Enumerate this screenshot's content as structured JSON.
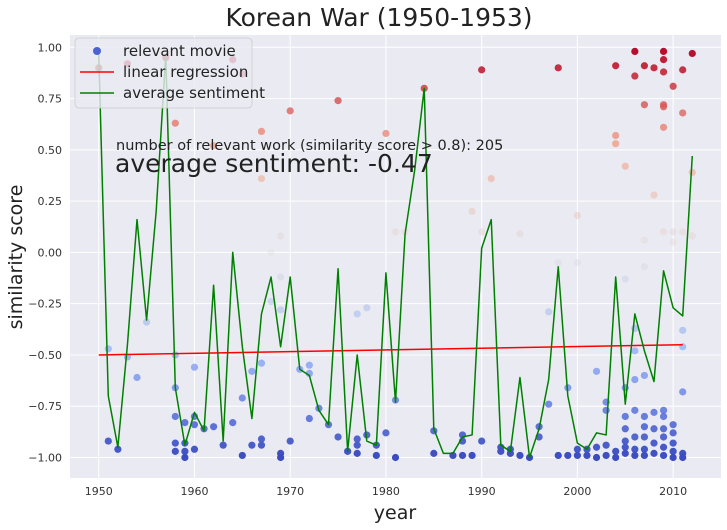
{
  "chart_data": {
    "type": "scatter",
    "title": "Korean War (1950-1953)",
    "xlabel": "year",
    "ylabel": "similarity score",
    "xlim": [
      1947,
      2015
    ],
    "ylim": [
      -1.1,
      1.06
    ],
    "xticks": [
      1950,
      1960,
      1970,
      1980,
      1990,
      2000,
      2010
    ],
    "yticks": [
      -1.0,
      -0.75,
      -0.5,
      -0.25,
      0.0,
      0.25,
      0.5,
      0.75,
      1.0
    ],
    "xtick_labels": [
      "1950",
      "1960",
      "1970",
      "1980",
      "1990",
      "2000",
      "2010"
    ],
    "ytick_labels": [
      "−1.00",
      "−0.75",
      "−0.50",
      "−0.25",
      "0.00",
      "0.25",
      "0.50",
      "0.75",
      "1.00"
    ],
    "grid": true,
    "background": "#eaeaf2",
    "legend": {
      "position": "top-left",
      "entries": [
        {
          "label": "relevant movie",
          "kind": "marker",
          "color": "#4a63d0"
        },
        {
          "label": "linear regression",
          "kind": "line",
          "color": "#ff0000"
        },
        {
          "label": "average sentiment",
          "kind": "line",
          "color": "#008000"
        }
      ]
    },
    "annotations": {
      "count_text": "number of relevant work (similarity score > 0.8): 205",
      "avg_text": "average sentiment: -0.47"
    },
    "colormap": "coolwarm",
    "points": [
      [
        1950,
        0.9
      ],
      [
        1951,
        -0.92
      ],
      [
        1951,
        -0.47
      ],
      [
        1952,
        -0.96
      ],
      [
        1953,
        -0.51
      ],
      [
        1953,
        0.92
      ],
      [
        1954,
        -0.61
      ],
      [
        1955,
        -0.34
      ],
      [
        1957,
        0.95
      ],
      [
        1958,
        0.63
      ],
      [
        1958,
        -0.5
      ],
      [
        1958,
        -0.66
      ],
      [
        1958,
        -0.8
      ],
      [
        1958,
        -0.93
      ],
      [
        1958,
        -0.97
      ],
      [
        1959,
        -0.83
      ],
      [
        1959,
        -0.93
      ],
      [
        1959,
        -0.97
      ],
      [
        1959,
        -1.0
      ],
      [
        1960,
        -0.56
      ],
      [
        1960,
        -0.8
      ],
      [
        1960,
        -0.84
      ],
      [
        1960,
        -0.96
      ],
      [
        1961,
        -0.86
      ],
      [
        1962,
        0.52
      ],
      [
        1962,
        -0.85
      ],
      [
        1963,
        -0.94
      ],
      [
        1964,
        0.94
      ],
      [
        1964,
        -0.83
      ],
      [
        1965,
        0.87
      ],
      [
        1965,
        -0.71
      ],
      [
        1965,
        -0.99
      ],
      [
        1966,
        -0.58
      ],
      [
        1966,
        -0.94
      ],
      [
        1967,
        0.59
      ],
      [
        1967,
        0.36
      ],
      [
        1967,
        -0.54
      ],
      [
        1967,
        -0.91
      ],
      [
        1967,
        -0.94
      ],
      [
        1968,
        0.0
      ],
      [
        1968,
        -0.24
      ],
      [
        1969,
        0.08
      ],
      [
        1969,
        -0.12
      ],
      [
        1969,
        -0.28
      ],
      [
        1969,
        -0.98
      ],
      [
        1969,
        -1.0
      ],
      [
        1970,
        0.69
      ],
      [
        1970,
        -0.92
      ],
      [
        1971,
        -0.57
      ],
      [
        1972,
        -0.55
      ],
      [
        1972,
        -0.59
      ],
      [
        1972,
        -0.81
      ],
      [
        1973,
        -0.76
      ],
      [
        1974,
        -0.84
      ],
      [
        1975,
        0.74
      ],
      [
        1975,
        -0.9
      ],
      [
        1976,
        -0.97
      ],
      [
        1977,
        -0.3
      ],
      [
        1977,
        -0.91
      ],
      [
        1977,
        -0.94
      ],
      [
        1977,
        -0.98
      ],
      [
        1978,
        -0.27
      ],
      [
        1978,
        -0.89
      ],
      [
        1979,
        -0.94
      ],
      [
        1979,
        -0.99
      ],
      [
        1980,
        0.58
      ],
      [
        1980,
        -0.88
      ],
      [
        1981,
        0.1
      ],
      [
        1981,
        -0.72
      ],
      [
        1981,
        -1.0
      ],
      [
        1982,
        0.1
      ],
      [
        1984,
        0.8
      ],
      [
        1985,
        -0.87
      ],
      [
        1985,
        -0.98
      ],
      [
        1987,
        -0.99
      ],
      [
        1988,
        -0.89
      ],
      [
        1988,
        -0.92
      ],
      [
        1988,
        -0.99
      ],
      [
        1989,
        0.2
      ],
      [
        1989,
        -0.99
      ],
      [
        1990,
        0.89
      ],
      [
        1990,
        0.1
      ],
      [
        1990,
        -0.92
      ],
      [
        1991,
        0.36
      ],
      [
        1992,
        -0.95
      ],
      [
        1992,
        -0.97
      ],
      [
        1993,
        -0.96
      ],
      [
        1993,
        -0.98
      ],
      [
        1994,
        0.09
      ],
      [
        1994,
        -0.99
      ],
      [
        1995,
        -1.0
      ],
      [
        1996,
        -0.85
      ],
      [
        1996,
        -0.9
      ],
      [
        1997,
        -0.29
      ],
      [
        1997,
        -0.74
      ],
      [
        1998,
        0.9
      ],
      [
        1998,
        -0.05
      ],
      [
        1998,
        -0.99
      ],
      [
        1999,
        -0.66
      ],
      [
        1999,
        -0.99
      ],
      [
        2000,
        0.18
      ],
      [
        2000,
        -0.05
      ],
      [
        2000,
        -0.96
      ],
      [
        2000,
        -0.99
      ],
      [
        2001,
        -0.96
      ],
      [
        2001,
        -0.99
      ],
      [
        2002,
        -0.58
      ],
      [
        2002,
        -0.95
      ],
      [
        2002,
        -1.0
      ],
      [
        2003,
        -0.73
      ],
      [
        2003,
        -0.77
      ],
      [
        2003,
        -0.94
      ],
      [
        2003,
        -0.99
      ],
      [
        2004,
        0.91
      ],
      [
        2004,
        0.57
      ],
      [
        2004,
        0.53
      ],
      [
        2004,
        -0.97
      ],
      [
        2004,
        -1.0
      ],
      [
        2005,
        0.42
      ],
      [
        2005,
        -0.13
      ],
      [
        2005,
        -0.66
      ],
      [
        2005,
        -0.8
      ],
      [
        2005,
        -0.86
      ],
      [
        2005,
        -0.92
      ],
      [
        2005,
        -0.95
      ],
      [
        2005,
        -0.98
      ],
      [
        2006,
        0.98
      ],
      [
        2006,
        0.86
      ],
      [
        2006,
        -0.37
      ],
      [
        2006,
        -0.48
      ],
      [
        2006,
        -0.62
      ],
      [
        2006,
        -0.77
      ],
      [
        2006,
        -0.9
      ],
      [
        2006,
        -0.96
      ],
      [
        2006,
        -0.99
      ],
      [
        2007,
        0.91
      ],
      [
        2007,
        0.72
      ],
      [
        2007,
        0.06
      ],
      [
        2007,
        -0.07
      ],
      [
        2007,
        -0.6
      ],
      [
        2007,
        -0.8
      ],
      [
        2007,
        -0.85
      ],
      [
        2007,
        -0.9
      ],
      [
        2007,
        -0.96
      ],
      [
        2007,
        -0.99
      ],
      [
        2008,
        0.9
      ],
      [
        2008,
        0.28
      ],
      [
        2008,
        -0.78
      ],
      [
        2008,
        -0.86
      ],
      [
        2008,
        -0.93
      ],
      [
        2008,
        -0.98
      ],
      [
        2009,
        0.98
      ],
      [
        2009,
        0.94
      ],
      [
        2009,
        0.88
      ],
      [
        2009,
        0.72
      ],
      [
        2009,
        0.71
      ],
      [
        2009,
        0.61
      ],
      [
        2009,
        0.1
      ],
      [
        2009,
        -0.77
      ],
      [
        2009,
        -0.8
      ],
      [
        2009,
        -0.86
      ],
      [
        2009,
        -0.9
      ],
      [
        2009,
        -0.95
      ],
      [
        2009,
        -0.99
      ],
      [
        2010,
        0.81
      ],
      [
        2010,
        0.1
      ],
      [
        2010,
        0.05
      ],
      [
        2010,
        -0.84
      ],
      [
        2010,
        -0.88
      ],
      [
        2010,
        -0.93
      ],
      [
        2010,
        -0.97
      ],
      [
        2010,
        -1.0
      ],
      [
        2011,
        0.89
      ],
      [
        2011,
        0.68
      ],
      [
        2011,
        0.1
      ],
      [
        2011,
        -0.38
      ],
      [
        2011,
        -0.46
      ],
      [
        2011,
        -0.68
      ],
      [
        2011,
        -0.98
      ],
      [
        2011,
        -1.0
      ],
      [
        2012,
        0.97
      ],
      [
        2012,
        0.39
      ],
      [
        2012,
        0.08
      ]
    ],
    "regression": {
      "x": [
        1950,
        2011
      ],
      "y": [
        -0.5,
        -0.45
      ]
    },
    "average_sentiment": {
      "x": [
        1950,
        1951,
        1952,
        1953,
        1954,
        1955,
        1956,
        1957,
        1958,
        1959,
        1960,
        1961,
        1962,
        1963,
        1964,
        1965,
        1966,
        1967,
        1968,
        1969,
        1970,
        1971,
        1972,
        1973,
        1974,
        1975,
        1976,
        1977,
        1978,
        1979,
        1980,
        1981,
        1982,
        1983,
        1984,
        1985,
        1986,
        1987,
        1988,
        1989,
        1990,
        1991,
        1992,
        1993,
        1994,
        1995,
        1996,
        1997,
        1998,
        1999,
        2000,
        2001,
        2002,
        2003,
        2004,
        2005,
        2006,
        2007,
        2008,
        2009,
        2010,
        2011,
        2012
      ],
      "y": [
        0.97,
        -0.7,
        -0.95,
        -0.45,
        0.16,
        -0.33,
        0.2,
        0.96,
        -0.66,
        -0.94,
        -0.78,
        -0.87,
        -0.16,
        -0.92,
        0.0,
        -0.46,
        -0.81,
        -0.3,
        -0.12,
        -0.46,
        -0.12,
        -0.57,
        -0.6,
        -0.77,
        -0.84,
        -0.08,
        -0.97,
        -0.5,
        -0.92,
        -0.94,
        -0.1,
        -0.73,
        0.09,
        0.4,
        0.8,
        -0.86,
        -0.98,
        -0.98,
        -0.9,
        -0.89,
        0.02,
        0.16,
        -0.94,
        -0.97,
        -0.61,
        -1.0,
        -0.86,
        -0.62,
        -0.07,
        -0.7,
        -0.93,
        -0.96,
        -0.88,
        -0.89,
        -0.12,
        -0.74,
        -0.3,
        -0.48,
        -0.63,
        -0.09,
        -0.27,
        -0.31,
        0.47
      ]
    }
  }
}
